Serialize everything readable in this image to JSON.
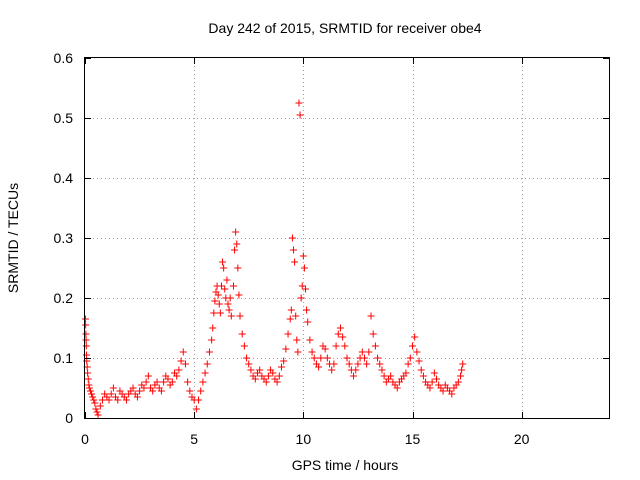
{
  "chart_data": {
    "type": "scatter",
    "title": "Day 242 of 2015, SRMTID for receiver obe4",
    "xlabel": "GPS time / hours",
    "ylabel": "SRMTID / TECUs",
    "xlim": [
      0,
      24
    ],
    "ylim": [
      0,
      0.6
    ],
    "xticks": [
      0,
      5,
      10,
      15,
      20
    ],
    "yticks": [
      0,
      0.1,
      0.2,
      0.3,
      0.4,
      0.5,
      0.6
    ],
    "xtick_labels": [
      "0",
      "5",
      "10",
      "15",
      "20"
    ],
    "ytick_labels": [
      "0",
      "0.1",
      "0.2",
      "0.3",
      "0.4",
      "0.5",
      "0.6"
    ],
    "grid": true,
    "marker": "+",
    "color": "#ff0000",
    "series": [
      {
        "name": "obe4",
        "points": [
          [
            0.02,
            0.165
          ],
          [
            0.03,
            0.155
          ],
          [
            0.04,
            0.14
          ],
          [
            0.05,
            0.13
          ],
          [
            0.06,
            0.12
          ],
          [
            0.07,
            0.105
          ],
          [
            0.08,
            0.095
          ],
          [
            0.1,
            0.085
          ],
          [
            0.12,
            0.075
          ],
          [
            0.15,
            0.065
          ],
          [
            0.18,
            0.055
          ],
          [
            0.2,
            0.05
          ],
          [
            0.25,
            0.045
          ],
          [
            0.3,
            0.04
          ],
          [
            0.35,
            0.035
          ],
          [
            0.4,
            0.03
          ],
          [
            0.45,
            0.025
          ],
          [
            0.5,
            0.015
          ],
          [
            0.55,
            0.01
          ],
          [
            0.6,
            0.005
          ],
          [
            0.7,
            0.02
          ],
          [
            0.8,
            0.03
          ],
          [
            0.9,
            0.04
          ],
          [
            1.0,
            0.035
          ],
          [
            1.1,
            0.03
          ],
          [
            1.2,
            0.04
          ],
          [
            1.3,
            0.05
          ],
          [
            1.4,
            0.035
          ],
          [
            1.5,
            0.03
          ],
          [
            1.6,
            0.045
          ],
          [
            1.7,
            0.04
          ],
          [
            1.8,
            0.035
          ],
          [
            1.9,
            0.03
          ],
          [
            2.0,
            0.04
          ],
          [
            2.1,
            0.045
          ],
          [
            2.2,
            0.05
          ],
          [
            2.3,
            0.04
          ],
          [
            2.4,
            0.035
          ],
          [
            2.5,
            0.045
          ],
          [
            2.6,
            0.055
          ],
          [
            2.7,
            0.05
          ],
          [
            2.8,
            0.06
          ],
          [
            2.9,
            0.07
          ],
          [
            3.0,
            0.05
          ],
          [
            3.1,
            0.045
          ],
          [
            3.2,
            0.055
          ],
          [
            3.3,
            0.06
          ],
          [
            3.4,
            0.05
          ],
          [
            3.5,
            0.045
          ],
          [
            3.6,
            0.06
          ],
          [
            3.7,
            0.07
          ],
          [
            3.8,
            0.065
          ],
          [
            3.9,
            0.055
          ],
          [
            4.0,
            0.06
          ],
          [
            4.1,
            0.075
          ],
          [
            4.2,
            0.07
          ],
          [
            4.3,
            0.08
          ],
          [
            4.4,
            0.095
          ],
          [
            4.5,
            0.11
          ],
          [
            4.6,
            0.09
          ],
          [
            4.7,
            0.06
          ],
          [
            4.8,
            0.045
          ],
          [
            4.9,
            0.035
          ],
          [
            5.0,
            0.03
          ],
          [
            5.1,
            0.015
          ],
          [
            5.2,
            0.03
          ],
          [
            5.3,
            0.045
          ],
          [
            5.4,
            0.06
          ],
          [
            5.5,
            0.075
          ],
          [
            5.6,
            0.09
          ],
          [
            5.7,
            0.11
          ],
          [
            5.8,
            0.13
          ],
          [
            5.85,
            0.15
          ],
          [
            5.9,
            0.175
          ],
          [
            5.95,
            0.195
          ],
          [
            6.0,
            0.21
          ],
          [
            6.05,
            0.22
          ],
          [
            6.1,
            0.205
          ],
          [
            6.15,
            0.19
          ],
          [
            6.2,
            0.175
          ],
          [
            6.25,
            0.22
          ],
          [
            6.3,
            0.26
          ],
          [
            6.35,
            0.25
          ],
          [
            6.4,
            0.215
          ],
          [
            6.45,
            0.2
          ],
          [
            6.5,
            0.23
          ],
          [
            6.55,
            0.19
          ],
          [
            6.6,
            0.18
          ],
          [
            6.65,
            0.2
          ],
          [
            6.7,
            0.17
          ],
          [
            6.8,
            0.22
          ],
          [
            6.85,
            0.28
          ],
          [
            6.9,
            0.31
          ],
          [
            6.95,
            0.29
          ],
          [
            7.0,
            0.25
          ],
          [
            7.05,
            0.205
          ],
          [
            7.1,
            0.17
          ],
          [
            7.2,
            0.14
          ],
          [
            7.3,
            0.12
          ],
          [
            7.4,
            0.1
          ],
          [
            7.5,
            0.09
          ],
          [
            7.6,
            0.08
          ],
          [
            7.7,
            0.07
          ],
          [
            7.8,
            0.065
          ],
          [
            7.9,
            0.075
          ],
          [
            8.0,
            0.08
          ],
          [
            8.1,
            0.07
          ],
          [
            8.2,
            0.065
          ],
          [
            8.3,
            0.06
          ],
          [
            8.4,
            0.07
          ],
          [
            8.5,
            0.08
          ],
          [
            8.6,
            0.075
          ],
          [
            8.7,
            0.065
          ],
          [
            8.8,
            0.06
          ],
          [
            8.9,
            0.07
          ],
          [
            9.0,
            0.085
          ],
          [
            9.1,
            0.095
          ],
          [
            9.2,
            0.115
          ],
          [
            9.3,
            0.14
          ],
          [
            9.4,
            0.165
          ],
          [
            9.45,
            0.18
          ],
          [
            9.5,
            0.3
          ],
          [
            9.55,
            0.28
          ],
          [
            9.6,
            0.26
          ],
          [
            9.65,
            0.17
          ],
          [
            9.7,
            0.13
          ],
          [
            9.75,
            0.11
          ],
          [
            9.8,
            0.525
          ],
          [
            9.85,
            0.505
          ],
          [
            9.9,
            0.2
          ],
          [
            9.95,
            0.22
          ],
          [
            10.0,
            0.27
          ],
          [
            10.05,
            0.25
          ],
          [
            10.1,
            0.215
          ],
          [
            10.15,
            0.18
          ],
          [
            10.2,
            0.16
          ],
          [
            10.3,
            0.13
          ],
          [
            10.4,
            0.11
          ],
          [
            10.5,
            0.1
          ],
          [
            10.6,
            0.09
          ],
          [
            10.7,
            0.085
          ],
          [
            10.8,
            0.1
          ],
          [
            10.9,
            0.12
          ],
          [
            11.0,
            0.115
          ],
          [
            11.1,
            0.1
          ],
          [
            11.2,
            0.09
          ],
          [
            11.3,
            0.08
          ],
          [
            11.4,
            0.09
          ],
          [
            11.5,
            0.12
          ],
          [
            11.6,
            0.14
          ],
          [
            11.7,
            0.15
          ],
          [
            11.8,
            0.135
          ],
          [
            11.9,
            0.12
          ],
          [
            12.0,
            0.1
          ],
          [
            12.1,
            0.09
          ],
          [
            12.2,
            0.08
          ],
          [
            12.3,
            0.07
          ],
          [
            12.4,
            0.08
          ],
          [
            12.5,
            0.09
          ],
          [
            12.6,
            0.1
          ],
          [
            12.7,
            0.11
          ],
          [
            12.8,
            0.1
          ],
          [
            12.9,
            0.09
          ],
          [
            13.0,
            0.11
          ],
          [
            13.1,
            0.17
          ],
          [
            13.2,
            0.14
          ],
          [
            13.3,
            0.12
          ],
          [
            13.4,
            0.1
          ],
          [
            13.5,
            0.09
          ],
          [
            13.6,
            0.08
          ],
          [
            13.7,
            0.07
          ],
          [
            13.8,
            0.06
          ],
          [
            13.9,
            0.065
          ],
          [
            14.0,
            0.07
          ],
          [
            14.1,
            0.06
          ],
          [
            14.2,
            0.055
          ],
          [
            14.3,
            0.05
          ],
          [
            14.4,
            0.06
          ],
          [
            14.5,
            0.065
          ],
          [
            14.6,
            0.07
          ],
          [
            14.7,
            0.075
          ],
          [
            14.8,
            0.09
          ],
          [
            14.9,
            0.1
          ],
          [
            15.0,
            0.12
          ],
          [
            15.1,
            0.135
          ],
          [
            15.2,
            0.11
          ],
          [
            15.3,
            0.095
          ],
          [
            15.4,
            0.08
          ],
          [
            15.5,
            0.07
          ],
          [
            15.6,
            0.06
          ],
          [
            15.7,
            0.055
          ],
          [
            15.8,
            0.05
          ],
          [
            15.9,
            0.06
          ],
          [
            16.0,
            0.075
          ],
          [
            16.1,
            0.065
          ],
          [
            16.2,
            0.055
          ],
          [
            16.3,
            0.05
          ],
          [
            16.4,
            0.045
          ],
          [
            16.5,
            0.055
          ],
          [
            16.6,
            0.05
          ],
          [
            16.7,
            0.045
          ],
          [
            16.8,
            0.04
          ],
          [
            16.9,
            0.05
          ],
          [
            17.0,
            0.055
          ],
          [
            17.1,
            0.06
          ],
          [
            17.2,
            0.07
          ],
          [
            17.25,
            0.08
          ],
          [
            17.3,
            0.09
          ]
        ]
      }
    ]
  }
}
